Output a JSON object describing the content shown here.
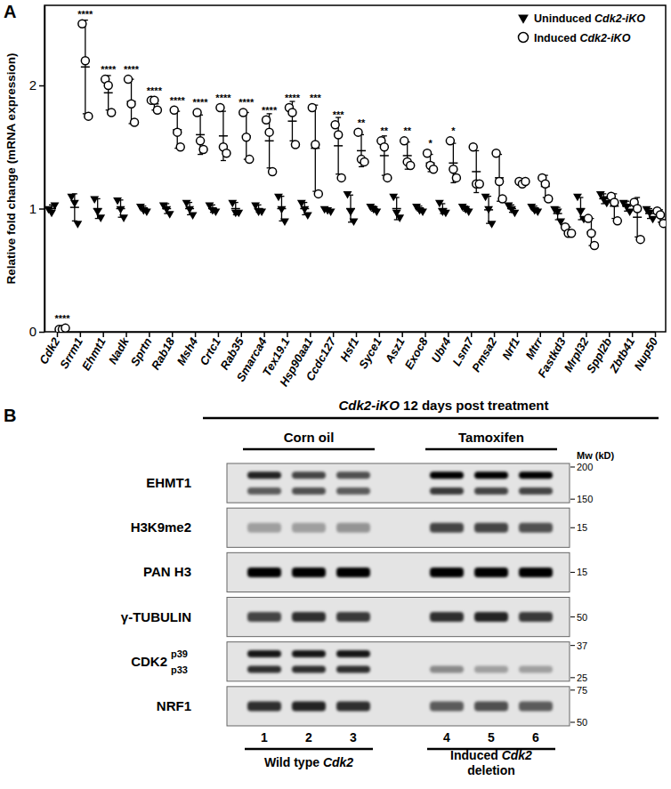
{
  "chart_data": {
    "type": "dot",
    "annotations": [
      "A"
    ],
    "y_label": "Relative fold change (mRNA expression)",
    "categories": [
      "Cdk2",
      "Srrm1",
      "Ehmt1",
      "Nadk",
      "Sprtn",
      "Rab18",
      "Msh4",
      "Crtc1",
      "Rab35",
      "Smarca4",
      "Tex19.1",
      "Hsp90aa1",
      "Ccdc127",
      "Hsf1",
      "Syce1",
      "Asz1",
      "Exoc8",
      "Ubr4",
      "Lsm7",
      "Pmsa2",
      "Nrf1",
      "Mtrr",
      "Fastkd3",
      "Mrpl32",
      "Sppl2b",
      "Zbtb41",
      "Nup50"
    ],
    "series": [
      {
        "name": "Uninduced Cdk2-iKO",
        "color": "#000000",
        "marker": "triangle-down",
        "values": [
          [
            1.0,
            0.97,
            1.03
          ],
          [
            1.1,
            1.05,
            0.88
          ],
          [
            1.08,
            0.98,
            0.93
          ],
          [
            1.07,
            1.0,
            0.93
          ],
          [
            1.02,
            0.99,
            0.98
          ],
          [
            1.03,
            1.0,
            0.96
          ],
          [
            1.05,
            1.0,
            0.95
          ],
          [
            1.03,
            0.99,
            0.98
          ],
          [
            1.05,
            0.97,
            0.97
          ],
          [
            1.03,
            0.98,
            0.98
          ],
          [
            1.1,
            1.0,
            0.9
          ],
          [
            1.05,
            1.0,
            0.95
          ],
          [
            1.0,
            0.99,
            0.98
          ],
          [
            1.12,
            0.98,
            0.9
          ],
          [
            1.02,
            1.0,
            0.98
          ],
          [
            1.1,
            0.97,
            0.93
          ],
          [
            1.02,
            0.99,
            0.98
          ],
          [
            1.05,
            0.98,
            0.97
          ],
          [
            1.02,
            1.0,
            0.98
          ],
          [
            1.1,
            1.0,
            0.88
          ],
          [
            1.03,
            1.0,
            0.97
          ],
          [
            1.02,
            0.99,
            0.98
          ],
          [
            1.0,
            0.98,
            0.9
          ],
          [
            1.1,
            0.98,
            0.92
          ],
          [
            1.12,
            1.08,
            1.05
          ],
          [
            1.05,
            1.02,
            0.98
          ],
          [
            1.0,
            0.97,
            0.92
          ]
        ],
        "mean": [
          1.0,
          1.01,
          1.0,
          1.0,
          1.0,
          1.0,
          1.0,
          1.0,
          1.0,
          1.0,
          1.0,
          1.0,
          0.99,
          1.0,
          1.0,
          1.0,
          1.0,
          1.0,
          1.0,
          0.99,
          1.0,
          1.0,
          0.96,
          1.0,
          1.08,
          1.02,
          0.96
        ],
        "error": [
          0.03,
          0.11,
          0.08,
          0.07,
          0.02,
          0.04,
          0.05,
          0.03,
          0.05,
          0.03,
          0.1,
          0.05,
          0.01,
          0.11,
          0.02,
          0.09,
          0.02,
          0.04,
          0.02,
          0.11,
          0.03,
          0.02,
          0.05,
          0.09,
          0.04,
          0.04,
          0.04
        ]
      },
      {
        "name": "Induced Cdk2-iKO",
        "color": "#000000",
        "marker": "circle-open",
        "values": [
          [
            0.02,
            0.02,
            0.03
          ],
          [
            2.5,
            2.2,
            1.75
          ],
          [
            2.05,
            2.0,
            1.78
          ],
          [
            2.05,
            1.85,
            1.7
          ],
          [
            1.88,
            1.88,
            1.8
          ],
          [
            1.8,
            1.62,
            1.5
          ],
          [
            1.78,
            1.55,
            1.48
          ],
          [
            1.82,
            1.5,
            1.45
          ],
          [
            1.78,
            1.58,
            1.4
          ],
          [
            1.72,
            1.62,
            1.3
          ],
          [
            1.82,
            1.78,
            1.52
          ],
          [
            1.82,
            1.52,
            1.12
          ],
          [
            1.68,
            1.6,
            1.25
          ],
          [
            1.62,
            1.4,
            1.38
          ],
          [
            1.55,
            1.5,
            1.25
          ],
          [
            1.55,
            1.38,
            1.35
          ],
          [
            1.45,
            1.35,
            1.32
          ],
          [
            1.55,
            1.32,
            1.25
          ],
          [
            1.5,
            1.2,
            1.2
          ],
          [
            1.45,
            1.22,
            1.08
          ],
          [
            1.22,
            1.2,
            1.22
          ],
          [
            1.25,
            1.2,
            1.08
          ],
          [
            0.85,
            0.8,
            0.8
          ],
          [
            0.92,
            0.8,
            0.7
          ],
          [
            1.1,
            1.05,
            0.9
          ],
          [
            1.05,
            1.0,
            0.75
          ],
          [
            0.98,
            0.95,
            0.88
          ]
        ],
        "mean": [
          0.02,
          2.15,
          1.94,
          1.87,
          1.85,
          1.64,
          1.6,
          1.59,
          1.59,
          1.55,
          1.71,
          1.49,
          1.51,
          1.47,
          1.43,
          1.43,
          1.37,
          1.37,
          1.3,
          1.25,
          1.21,
          1.18,
          0.82,
          0.81,
          1.02,
          0.93,
          0.94
        ],
        "error": [
          0.01,
          0.38,
          0.14,
          0.18,
          0.05,
          0.15,
          0.16,
          0.2,
          0.19,
          0.22,
          0.16,
          0.35,
          0.23,
          0.13,
          0.16,
          0.11,
          0.07,
          0.16,
          0.17,
          0.19,
          0.01,
          0.09,
          0.03,
          0.11,
          0.1,
          0.16,
          0.05
        ],
        "significance": [
          "****",
          "****",
          "****",
          "****",
          "****",
          "****",
          "****",
          "****",
          "****",
          "****",
          "****",
          "***",
          "***",
          "**",
          "**",
          "**",
          "*",
          "*",
          null,
          null,
          null,
          null,
          null,
          null,
          null,
          null,
          null
        ]
      }
    ],
    "ylim": [
      0,
      2.65
    ],
    "yticks": [
      0,
      1,
      2
    ],
    "grid": false,
    "legend": "upper right"
  },
  "blot": {
    "panel": "B",
    "header": "Cdk2-iKO 12 days post treatment",
    "groups": [
      "Corn oil",
      "Tamoxifen"
    ],
    "mw_unit": "Mw (kD)",
    "lanes": [
      1,
      2,
      3,
      4,
      5,
      6
    ],
    "conditions": [
      [
        "Wild type Cdk2"
      ],
      [
        "Induced Cdk2",
        "deletion"
      ]
    ],
    "rows": [
      {
        "label": "EHMT1",
        "mw": [
          200,
          150
        ],
        "bands": [
          {
            "intensity": [
              0.85,
              0.7,
              0.65,
              1.0,
              1.0,
              1.0
            ]
          },
          {
            "intensity": [
              0.6,
              0.65,
              0.6,
              0.75,
              0.7,
              0.7
            ]
          }
        ]
      },
      {
        "label": "H3K9me2",
        "mw": [
          15
        ],
        "bands": [
          {
            "intensity": [
              0.3,
              0.3,
              0.35,
              0.7,
              0.7,
              0.65
            ]
          }
        ]
      },
      {
        "label": "PAN H3",
        "mw": [
          15
        ],
        "bands": [
          {
            "intensity": [
              1.0,
              1.0,
              1.0,
              1.0,
              1.0,
              1.0
            ]
          }
        ]
      },
      {
        "label": "γ-TUBULIN",
        "mw": [
          50
        ],
        "bands": [
          {
            "intensity": [
              0.7,
              0.8,
              0.75,
              0.8,
              0.85,
              0.75
            ]
          }
        ]
      },
      {
        "label": "CDK2",
        "mw": [
          37,
          25
        ],
        "bands": [
          {
            "label": "p39",
            "intensity": [
              0.9,
              0.9,
              0.9,
              0.0,
              0.0,
              0.0
            ]
          },
          {
            "label": "p33",
            "intensity": [
              0.8,
              0.8,
              0.8,
              0.4,
              0.3,
              0.3
            ]
          }
        ]
      },
      {
        "label": "NRF1",
        "mw": [
          75,
          50
        ],
        "bands": [
          {
            "intensity": [
              0.8,
              0.85,
              0.8,
              0.6,
              0.65,
              0.6
            ]
          }
        ]
      }
    ]
  }
}
